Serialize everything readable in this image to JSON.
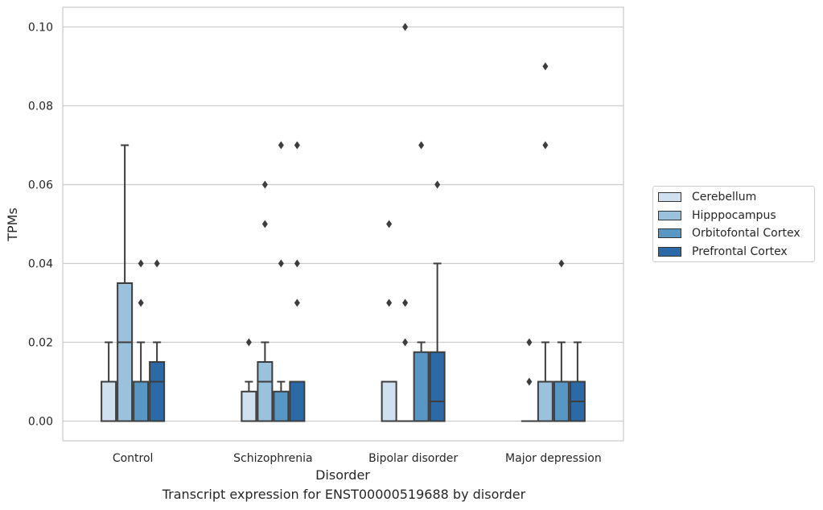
{
  "chart_data": {
    "type": "box",
    "title": "",
    "caption": "Transcript expression for ENST00000519688 by disorder",
    "xlabel": "Disorder",
    "ylabel": "TPMs",
    "ylim": [
      -0.005,
      0.105
    ],
    "yticks": [
      0.0,
      0.02,
      0.04,
      0.06,
      0.08,
      0.1
    ],
    "ytick_labels": [
      "0.00",
      "0.02",
      "0.04",
      "0.06",
      "0.08",
      "0.10"
    ],
    "grid": true,
    "legend_position": "right",
    "categories": [
      "Control",
      "Schizophrenia",
      "Bipolar disorder",
      "Major depression"
    ],
    "series": [
      {
        "name": "Cerebellum",
        "color": "#d0e0ef",
        "boxes": [
          {
            "q1": 0.0,
            "median": 0.0,
            "q3": 0.01,
            "whisker_low": 0.0,
            "whisker_high": 0.02,
            "outliers": []
          },
          {
            "q1": 0.0,
            "median": 0.0,
            "q3": 0.0075,
            "whisker_low": 0.0,
            "whisker_high": 0.01,
            "outliers": [
              0.02
            ]
          },
          {
            "q1": 0.0,
            "median": 0.0,
            "q3": 0.01,
            "whisker_low": 0.0,
            "whisker_high": 0.01,
            "outliers": [
              0.03,
              0.05
            ]
          },
          {
            "q1": 0.0,
            "median": 0.0,
            "q3": 0.0,
            "whisker_low": 0.0,
            "whisker_high": 0.0,
            "outliers": [
              0.01,
              0.02
            ]
          }
        ]
      },
      {
        "name": "Hipppocampus",
        "color": "#9ac2dc",
        "boxes": [
          {
            "q1": 0.0,
            "median": 0.02,
            "q3": 0.035,
            "whisker_low": 0.0,
            "whisker_high": 0.07,
            "outliers": []
          },
          {
            "q1": 0.0,
            "median": 0.01,
            "q3": 0.015,
            "whisker_low": 0.0,
            "whisker_high": 0.02,
            "outliers": [
              0.05,
              0.06
            ]
          },
          {
            "q1": 0.0,
            "median": 0.0,
            "q3": 0.0,
            "whisker_low": 0.0,
            "whisker_high": 0.0,
            "outliers": [
              0.02,
              0.03,
              0.1
            ]
          },
          {
            "q1": 0.0,
            "median": 0.01,
            "q3": 0.01,
            "whisker_low": 0.0,
            "whisker_high": 0.02,
            "outliers": [
              0.07,
              0.09
            ]
          }
        ]
      },
      {
        "name": "Orbitofontal Cortex",
        "color": "#5896c4",
        "boxes": [
          {
            "q1": 0.0,
            "median": 0.01,
            "q3": 0.01,
            "whisker_low": 0.0,
            "whisker_high": 0.02,
            "outliers": [
              0.03,
              0.04
            ]
          },
          {
            "q1": 0.0,
            "median": 0.0,
            "q3": 0.0075,
            "whisker_low": 0.0,
            "whisker_high": 0.01,
            "outliers": [
              0.04,
              0.07
            ]
          },
          {
            "q1": 0.0,
            "median": 0.0,
            "q3": 0.0175,
            "whisker_low": 0.0,
            "whisker_high": 0.02,
            "outliers": [
              0.07
            ]
          },
          {
            "q1": 0.0,
            "median": 0.0,
            "q3": 0.01,
            "whisker_low": 0.0,
            "whisker_high": 0.02,
            "outliers": [
              0.04
            ]
          }
        ]
      },
      {
        "name": "Prefrontal Cortex",
        "color": "#2c69a7",
        "boxes": [
          {
            "q1": 0.0,
            "median": 0.01,
            "q3": 0.015,
            "whisker_low": 0.0,
            "whisker_high": 0.02,
            "outliers": [
              0.04
            ]
          },
          {
            "q1": 0.0,
            "median": 0.0,
            "q3": 0.01,
            "whisker_low": 0.0,
            "whisker_high": 0.01,
            "outliers": [
              0.03,
              0.04,
              0.07
            ]
          },
          {
            "q1": 0.0,
            "median": 0.005,
            "q3": 0.0175,
            "whisker_low": 0.0,
            "whisker_high": 0.04,
            "outliers": [
              0.06
            ]
          },
          {
            "q1": 0.0,
            "median": 0.005,
            "q3": 0.01,
            "whisker_low": 0.0,
            "whisker_high": 0.02,
            "outliers": []
          }
        ]
      }
    ]
  }
}
